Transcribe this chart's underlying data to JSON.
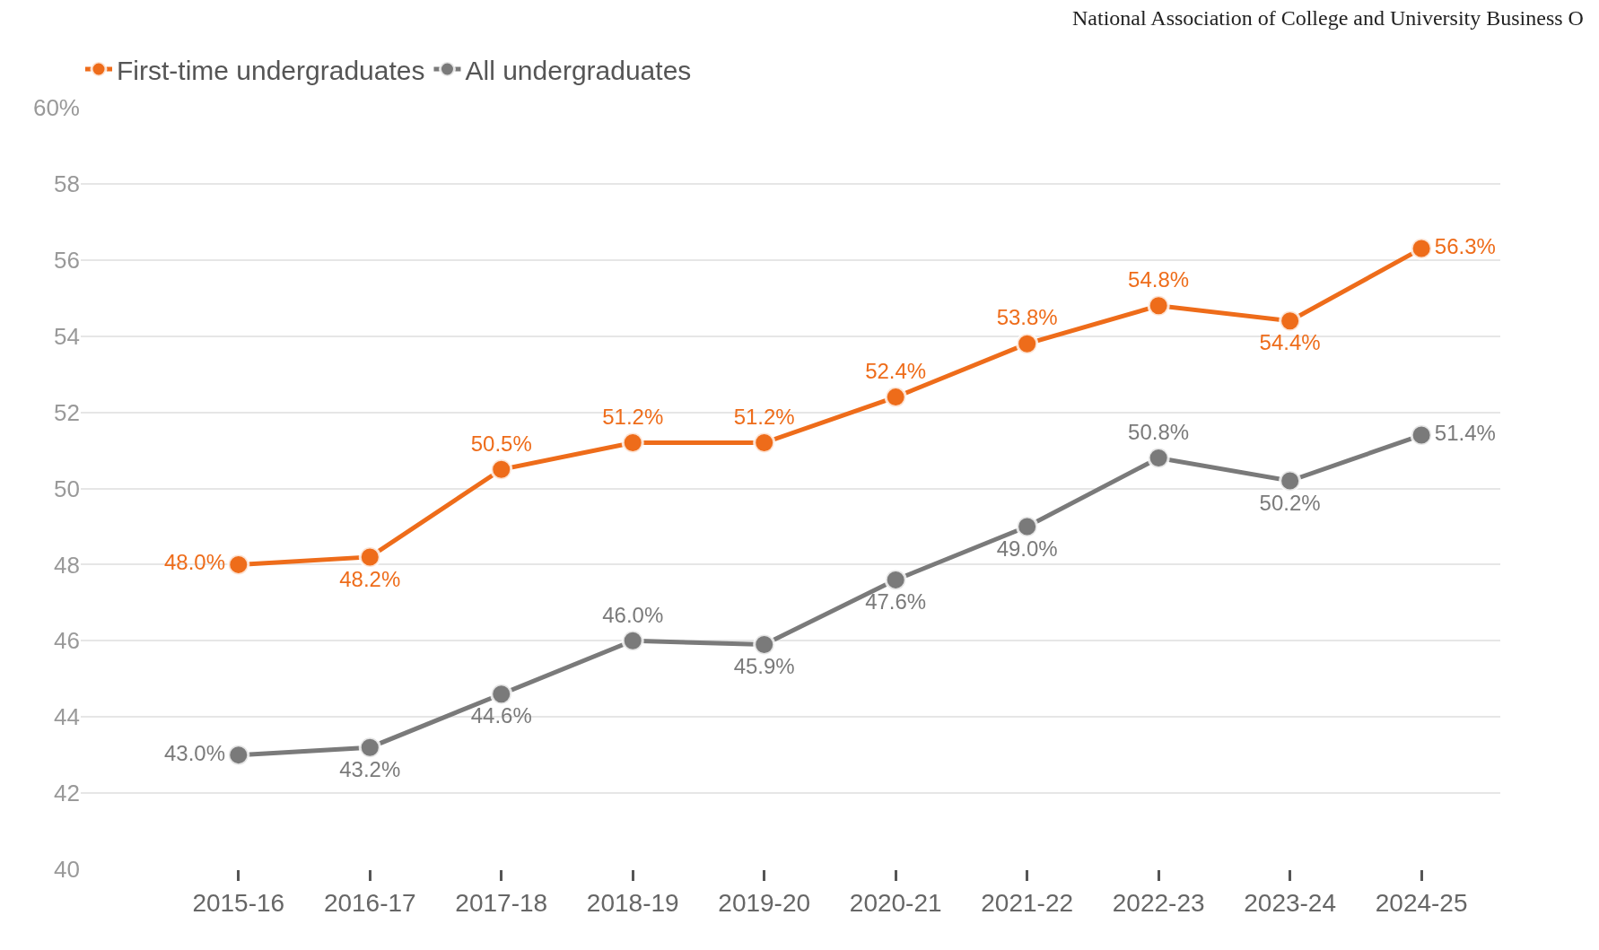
{
  "chart_data": {
    "type": "line",
    "categories": [
      "2015-16",
      "2016-17",
      "2017-18",
      "2018-19",
      "2019-20",
      "2020-21",
      "2021-22",
      "2022-23",
      "2023-24",
      "2024-25"
    ],
    "series": [
      {
        "name": "First-time undergraduates",
        "color": "#ee6c1a",
        "values": [
          48.0,
          48.2,
          50.5,
          51.2,
          51.2,
          52.4,
          53.8,
          54.8,
          54.4,
          56.3
        ],
        "value_labels": [
          "48.0%",
          "48.2%",
          "50.5%",
          "51.2%",
          "51.2%",
          "52.4%",
          "53.8%",
          "54.8%",
          "54.4%",
          "56.3%"
        ]
      },
      {
        "name": "All undergraduates",
        "color": "#7a7a7a",
        "values": [
          43.0,
          43.2,
          44.6,
          46.0,
          45.9,
          47.6,
          49.0,
          50.8,
          50.2,
          51.4
        ],
        "value_labels": [
          "43.0%",
          "43.2%",
          "44.6%",
          "46.0%",
          "45.9%",
          "47.6%",
          "49.0%",
          "50.8%",
          "50.2%",
          "51.4%"
        ]
      }
    ],
    "ylim": [
      40,
      60
    ],
    "yticks": [
      40,
      42,
      44,
      46,
      48,
      50,
      52,
      54,
      56,
      58,
      {
        "value": 60,
        "label": "60%"
      }
    ],
    "grid": "y",
    "legend": "top left",
    "marker": "circle",
    "line_style": "solid",
    "annotations": [
      "National Association of College and University Business O"
    ]
  }
}
